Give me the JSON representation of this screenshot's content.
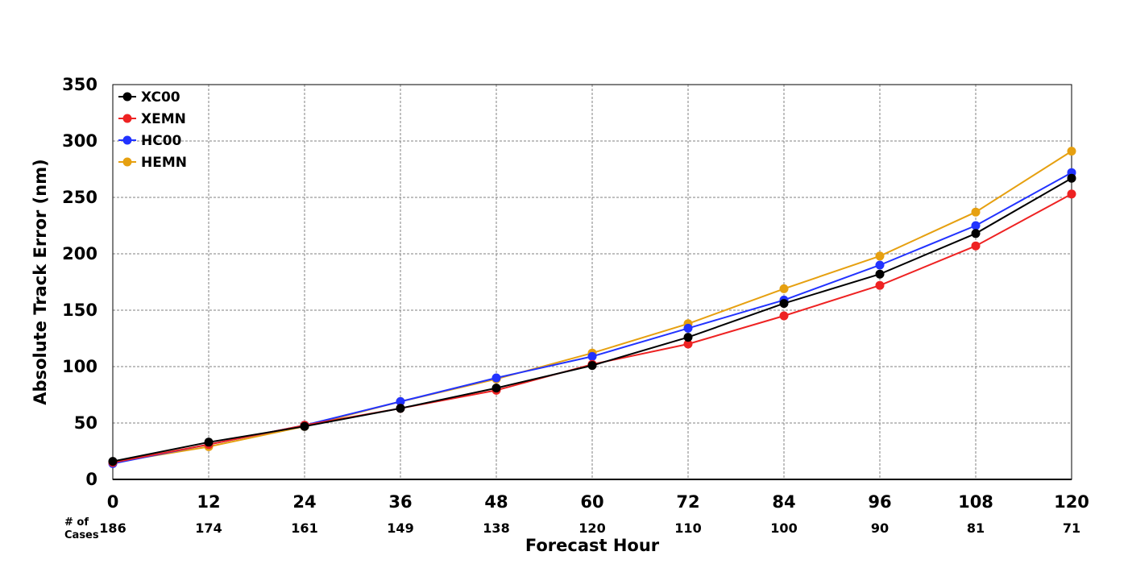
{
  "chart_data": {
    "type": "line",
    "title": "",
    "xlabel": "Forecast Hour",
    "ylabel": "Absolute Track Error (nm)",
    "x": [
      0,
      12,
      24,
      36,
      48,
      60,
      72,
      84,
      96,
      108,
      120
    ],
    "xlim": [
      0,
      120
    ],
    "ylim": [
      0,
      350
    ],
    "yticks": [
      0,
      50,
      100,
      150,
      200,
      250,
      300,
      350
    ],
    "grid": true,
    "legend_position": "top-left",
    "series": [
      {
        "name": "XC00",
        "color": "#000000",
        "values": [
          16,
          33,
          47,
          63,
          81,
          101,
          126,
          156,
          182,
          218,
          267
        ]
      },
      {
        "name": "XEMN",
        "color": "#ee2222",
        "values": [
          15,
          31,
          48,
          63,
          79,
          102,
          120,
          145,
          172,
          207,
          253
        ]
      },
      {
        "name": "HC00",
        "color": "#2233ff",
        "values": [
          14,
          31,
          48,
          69,
          90,
          109,
          134,
          159,
          190,
          225,
          272
        ]
      },
      {
        "name": "HEMN",
        "color": "#e6a010",
        "values": [
          15,
          29,
          47,
          69,
          89,
          112,
          138,
          169,
          198,
          237,
          291
        ]
      }
    ],
    "cases_label": [
      "# of",
      "Cases"
    ],
    "cases": [
      "186",
      "174",
      "161",
      "149",
      "138",
      "120",
      "110",
      "100",
      "90",
      "81",
      "71"
    ]
  }
}
